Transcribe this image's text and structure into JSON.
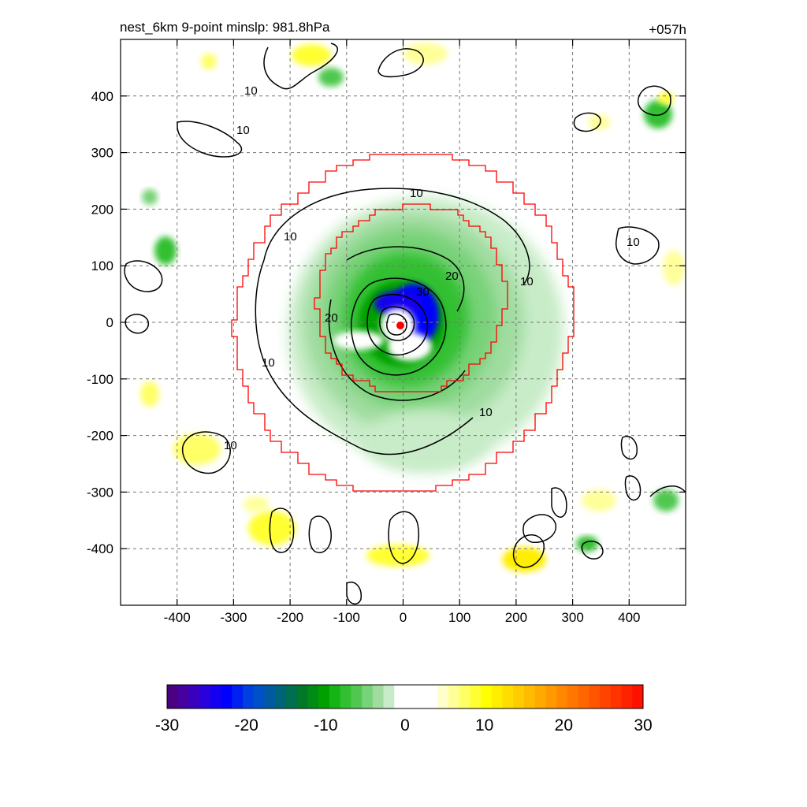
{
  "chart_data": {
    "type": "heatmap",
    "title_left": "nest_6km  9-point minslp: 981.8hPa",
    "title_right": "+057h",
    "xlabel": "",
    "ylabel": "",
    "xlim": [
      -500,
      500
    ],
    "ylim": [
      -500,
      500
    ],
    "grid": true,
    "x_ticks": [
      -400,
      -300,
      -200,
      -100,
      0,
      100,
      200,
      300,
      400
    ],
    "y_ticks": [
      400,
      300,
      200,
      100,
      0,
      -100,
      -200,
      -300,
      -400
    ],
    "colorbar": {
      "range": [
        -30,
        30
      ],
      "ticks": [
        -30,
        -20,
        -10,
        0,
        10,
        20,
        30
      ],
      "colors": [
        "#4B0082",
        "#4600A0",
        "#3A00C0",
        "#2A00DC",
        "#1400F0",
        "#0000FF",
        "#0020F0",
        "#0040E0",
        "#0050C8",
        "#005AA0",
        "#006478",
        "#006E50",
        "#007828",
        "#008C14",
        "#00A000",
        "#14B414",
        "#32C032",
        "#50C850",
        "#78D278",
        "#A0DCA0",
        "#C8ECC8",
        "#FFFFFF",
        "#FFFFFF",
        "#FFFFFF",
        "#FFFFFF",
        "#FFFFCC",
        "#FFFF99",
        "#FFFF66",
        "#FFFF33",
        "#FFFF00",
        "#FFEE00",
        "#FFDD00",
        "#FFCC00",
        "#FFBB00",
        "#FFAA00",
        "#FF9900",
        "#FF8800",
        "#FF7700",
        "#FF6600",
        "#FF5500",
        "#FF4400",
        "#FF3300",
        "#FF2200",
        "#FF1100"
      ]
    },
    "contour_labels": [
      "10",
      "20",
      "30"
    ],
    "center_marker_color": "#FF0000",
    "nest_boundary_color": "#FF0000"
  }
}
